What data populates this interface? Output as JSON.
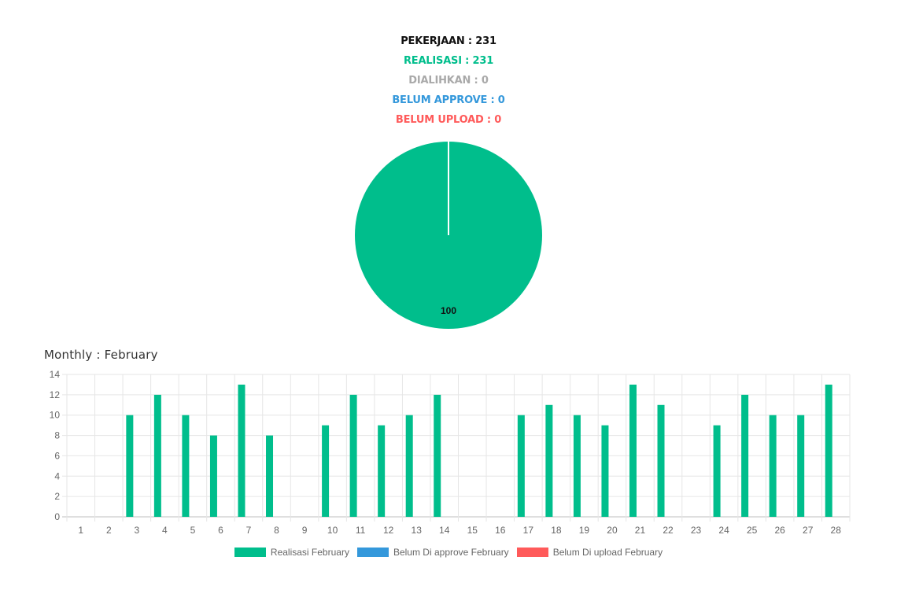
{
  "summary": {
    "pekerjaan": "PEKERJAAN : 231",
    "realisasi": "REALISASI : 231",
    "dialihkan": "DIALIHKAN : 0",
    "belum_approve": "BELUM APPROVE : 0",
    "belum_upload": "BELUM UPLOAD : 0"
  },
  "colors": {
    "black": "#111111",
    "green": "#00be8c",
    "gray": "#a9a9a9",
    "blue": "#3498db",
    "red": "#ff5a5a",
    "grid": "#e6e6e6",
    "axis_text": "#666666"
  },
  "chart_data": [
    {
      "type": "pie",
      "slices": [
        {
          "name": "Realisasi",
          "value": 100,
          "label": "100",
          "color": "#00be8c"
        }
      ]
    },
    {
      "type": "bar",
      "title": "Monthly : February",
      "categories": [
        "1",
        "2",
        "3",
        "4",
        "5",
        "6",
        "7",
        "8",
        "9",
        "10",
        "11",
        "12",
        "13",
        "14",
        "15",
        "16",
        "17",
        "18",
        "19",
        "20",
        "21",
        "22",
        "23",
        "24",
        "25",
        "26",
        "27",
        "28"
      ],
      "series": [
        {
          "name": "Realisasi February",
          "color": "#00be8c",
          "values": [
            0,
            0,
            10,
            12,
            10,
            8,
            13,
            8,
            0,
            9,
            12,
            9,
            10,
            12,
            0,
            0,
            10,
            11,
            10,
            9,
            13,
            11,
            0,
            9,
            12,
            10,
            10,
            13
          ]
        },
        {
          "name": "Belum Di approve February",
          "color": "#3498db",
          "values": [
            0,
            0,
            0,
            0,
            0,
            0,
            0,
            0,
            0,
            0,
            0,
            0,
            0,
            0,
            0,
            0,
            0,
            0,
            0,
            0,
            0,
            0,
            0,
            0,
            0,
            0,
            0,
            0
          ]
        },
        {
          "name": "Belum Di upload February",
          "color": "#ff5a5a",
          "values": [
            0,
            0,
            0,
            0,
            0,
            0,
            0,
            0,
            0,
            0,
            0,
            0,
            0,
            0,
            0,
            0,
            0,
            0,
            0,
            0,
            0,
            0,
            0,
            0,
            0,
            0,
            0,
            0
          ]
        }
      ],
      "ylim": [
        0,
        14
      ],
      "yticks": [
        "0",
        "2",
        "4",
        "6",
        "8",
        "10",
        "12",
        "14"
      ],
      "grid": true,
      "legend_position": "bottom"
    }
  ]
}
